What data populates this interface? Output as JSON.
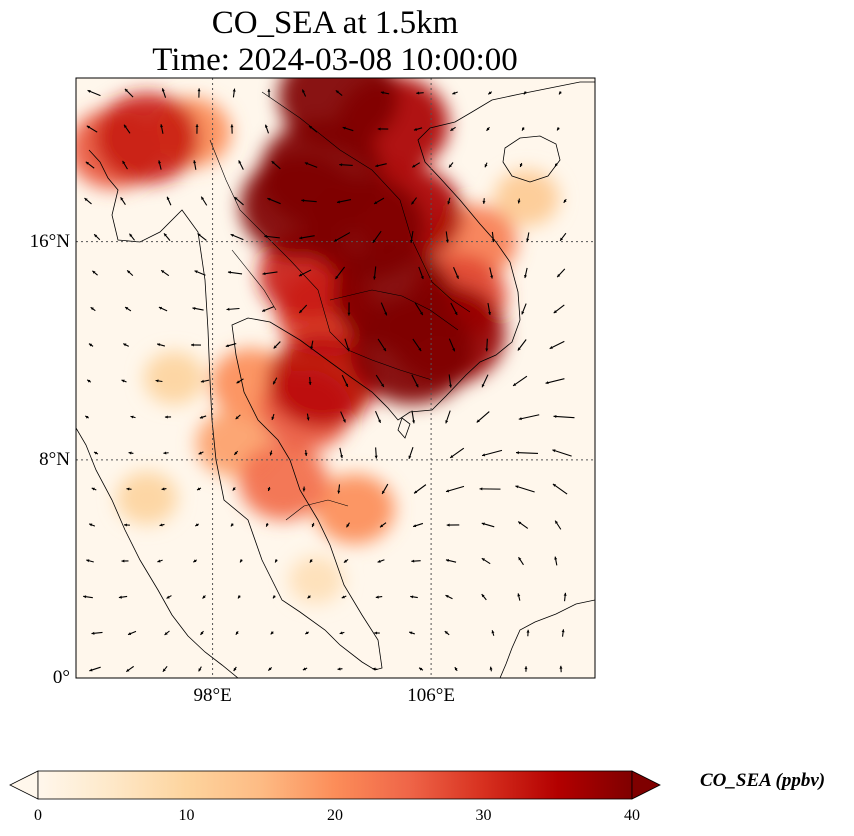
{
  "title": {
    "line1": "CO_SEA at 1.5km",
    "line2": "Time: 2024-03-08 10:00:00"
  },
  "map": {
    "extent": {
      "lon_min": 93,
      "lon_max": 112,
      "lat_min": 0,
      "lat_max": 22
    },
    "gridlines": "dotted",
    "lat_ticks": [
      {
        "value": 16,
        "label": "16°N"
      },
      {
        "value": 8,
        "label": "8°N"
      },
      {
        "value": 0,
        "label": "0°"
      }
    ],
    "lon_ticks": [
      {
        "value": 98,
        "label": "98°E"
      },
      {
        "value": 106,
        "label": "106°E"
      }
    ]
  },
  "field": {
    "variable": "CO_SEA",
    "unit": "ppbv",
    "plumes": [
      {
        "lon": 102.0,
        "lat": 18.5,
        "value": 42
      },
      {
        "lon": 101.2,
        "lat": 17.3,
        "value": 40
      },
      {
        "lon": 103.6,
        "lat": 16.5,
        "value": 40
      },
      {
        "lon": 104.6,
        "lat": 14.0,
        "value": 40
      },
      {
        "lon": 105.3,
        "lat": 12.0,
        "value": 42
      },
      {
        "lon": 106.6,
        "lat": 12.6,
        "value": 38
      },
      {
        "lon": 102.6,
        "lat": 21.3,
        "value": 40
      },
      {
        "lon": 104.6,
        "lat": 20.3,
        "value": 36
      },
      {
        "lon": 105.1,
        "lat": 17.0,
        "value": 36
      },
      {
        "lon": 101.6,
        "lat": 14.8,
        "value": 32
      },
      {
        "lon": 102.2,
        "lat": 13.4,
        "value": 30
      },
      {
        "lon": 102.0,
        "lat": 10.9,
        "value": 34
      },
      {
        "lon": 101.4,
        "lat": 9.8,
        "value": 26
      },
      {
        "lon": 99.4,
        "lat": 10.8,
        "value": 20
      },
      {
        "lon": 98.8,
        "lat": 8.6,
        "value": 18
      },
      {
        "lon": 100.6,
        "lat": 7.2,
        "value": 24
      },
      {
        "lon": 103.2,
        "lat": 6.2,
        "value": 20
      },
      {
        "lon": 95.6,
        "lat": 19.8,
        "value": 32
      },
      {
        "lon": 94.4,
        "lat": 19.4,
        "value": 26
      },
      {
        "lon": 97.2,
        "lat": 20.0,
        "value": 20
      },
      {
        "lon": 107.6,
        "lat": 16.0,
        "value": 22
      },
      {
        "lon": 107.0,
        "lat": 14.0,
        "value": 28
      },
      {
        "lon": 96.6,
        "lat": 11.0,
        "value": 10
      },
      {
        "lon": 95.6,
        "lat": 6.6,
        "value": 10
      },
      {
        "lon": 101.8,
        "lat": 3.6,
        "value": 7
      },
      {
        "lon": 109.5,
        "lat": 17.6,
        "value": 12
      }
    ]
  },
  "wind_vectors": {
    "style": "quiver",
    "color": "#000000"
  },
  "colorbar": {
    "cmap": "OrRd",
    "min": 0,
    "max": 40,
    "extend": "both",
    "ticks": [
      "0",
      "10",
      "20",
      "30",
      "40"
    ],
    "label": "CO_SEA (ppbv)",
    "stops": [
      "#fff7ec",
      "#fee8c8",
      "#fdd49e",
      "#fdbb84",
      "#fc8d59",
      "#ef6548",
      "#d7301f",
      "#b30000",
      "#7f0000"
    ]
  }
}
